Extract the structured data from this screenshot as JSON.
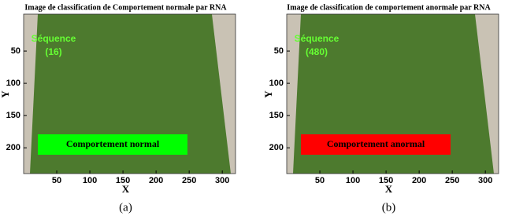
{
  "panels": [
    {
      "title": "Image de classification de Comportement normale par RNA",
      "xlabel": "X",
      "ylabel": "Y",
      "xlim": [
        0,
        320
      ],
      "ylim": [
        0,
        240
      ],
      "xticks": [
        50,
        100,
        150,
        200,
        250,
        300
      ],
      "yticks": [
        50,
        100,
        150,
        200
      ],
      "sequence_label": "Séquence",
      "sequence_number": "(16)",
      "status": "Comportement normal",
      "status_color": "#00ff00",
      "caption": "(a)"
    },
    {
      "title": "Image de classification de comportement anormale par RNA",
      "xlabel": "X",
      "ylabel": "Y",
      "xlim": [
        0,
        320
      ],
      "ylim": [
        0,
        240
      ],
      "xticks": [
        50,
        100,
        150,
        200,
        250,
        300
      ],
      "yticks": [
        50,
        100,
        150,
        200
      ],
      "sequence_label": "Séquence",
      "sequence_number": "(480)",
      "status": "Comportement anormal",
      "status_color": "#ff0000",
      "caption": "(b)"
    }
  ]
}
